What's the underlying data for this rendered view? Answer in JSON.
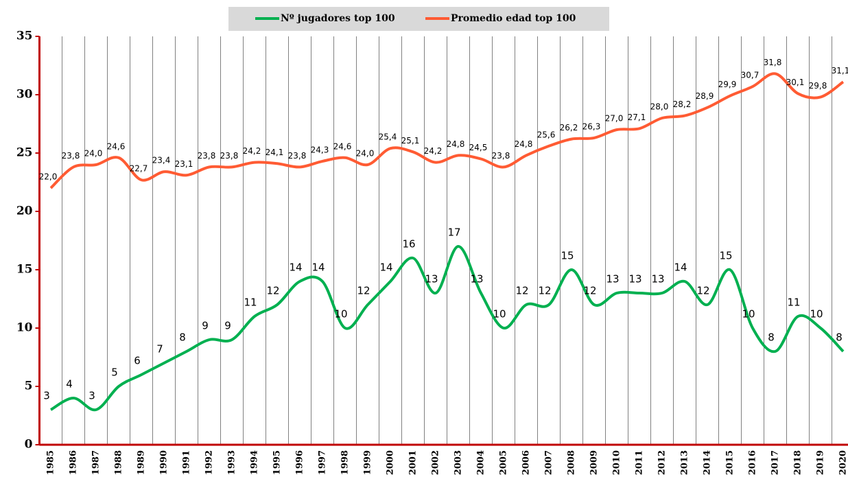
{
  "chart_data": {
    "type": "line",
    "categories": [
      "1985",
      "1986",
      "1987",
      "1988",
      "1989",
      "1990",
      "1991",
      "1992",
      "1993",
      "1994",
      "1995",
      "1996",
      "1997",
      "1998",
      "1999",
      "2000",
      "2001",
      "2002",
      "2003",
      "2004",
      "2005",
      "2006",
      "2007",
      "2008",
      "2009",
      "2010",
      "2011",
      "2012",
      "2013",
      "2014",
      "2015",
      "2016",
      "2017",
      "2018",
      "2019",
      "2020"
    ],
    "series": [
      {
        "name": "Nº jugadores top 100",
        "color": "#00b050",
        "values": [
          3,
          4,
          3,
          5,
          6,
          7,
          8,
          9,
          9,
          11,
          12,
          14,
          14,
          10,
          12,
          14,
          16,
          13,
          17,
          13,
          10,
          12,
          12,
          15,
          12,
          13,
          13,
          13,
          14,
          12,
          15,
          10,
          8,
          11,
          10,
          8
        ]
      },
      {
        "name": "Promedio edad top 100",
        "color": "#ff5b33",
        "values": [
          22.0,
          23.8,
          24.0,
          24.6,
          22.7,
          23.4,
          23.1,
          23.8,
          23.8,
          24.2,
          24.1,
          23.8,
          24.3,
          24.6,
          24.0,
          25.4,
          25.1,
          24.2,
          24.8,
          24.5,
          23.8,
          24.8,
          25.6,
          26.2,
          26.3,
          27.0,
          27.1,
          28.0,
          28.2,
          28.9,
          29.9,
          30.7,
          31.8,
          30.1,
          29.8,
          31.1
        ],
        "value_labels": [
          "22,0",
          "23,8",
          "24,0",
          "24,6",
          "22,7",
          "23,4",
          "23,1",
          "23,8",
          "23,8",
          "24,2",
          "24,1",
          "23,8",
          "24,3",
          "24,6",
          "24,0",
          "25,4",
          "25,1",
          "24,2",
          "24,8",
          "24,5",
          "23,8",
          "24,8",
          "25,6",
          "26,2",
          "26,3",
          "27,0",
          "27,1",
          "28,0",
          "28,2",
          "28,9",
          "29,9",
          "30,7",
          "31,8",
          "30,1",
          "29,8",
          "31,1"
        ]
      }
    ],
    "ylim": [
      0,
      35
    ],
    "yticks": [
      0,
      5,
      10,
      15,
      20,
      25,
      30,
      35
    ],
    "grid": true,
    "legend": "top"
  }
}
